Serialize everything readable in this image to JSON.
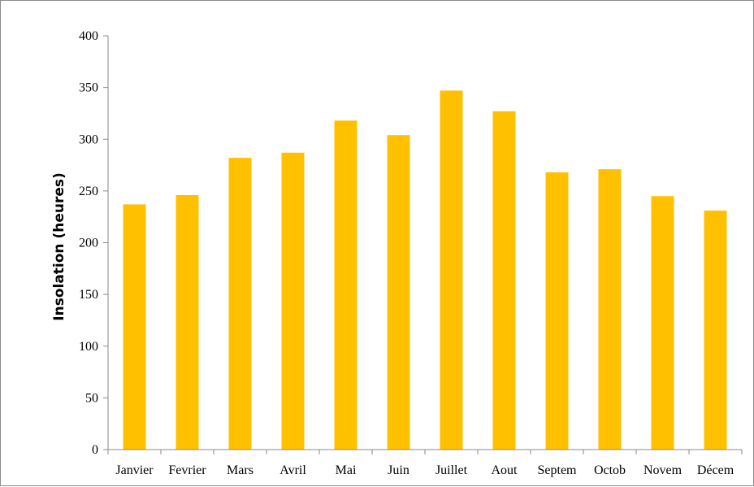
{
  "chart_data": {
    "type": "bar",
    "title": "",
    "xlabel": "",
    "ylabel": "Insolation (heures)",
    "categories": [
      "Janvier",
      "Fevrier",
      "Mars",
      "Avril",
      "Mai",
      "Juin",
      "Juillet",
      "Aout",
      "Septem",
      "Octob",
      "Novem",
      "Décem"
    ],
    "values": [
      237,
      246,
      282,
      287,
      318,
      304,
      347,
      327,
      268,
      271,
      245,
      231
    ],
    "ylim": [
      0,
      400
    ],
    "yticks": [
      "0",
      "50",
      "100",
      "150",
      "200",
      "250",
      "300",
      "350",
      "400"
    ],
    "bar_color": "#FFC000",
    "grid": false,
    "legend": "none"
  }
}
